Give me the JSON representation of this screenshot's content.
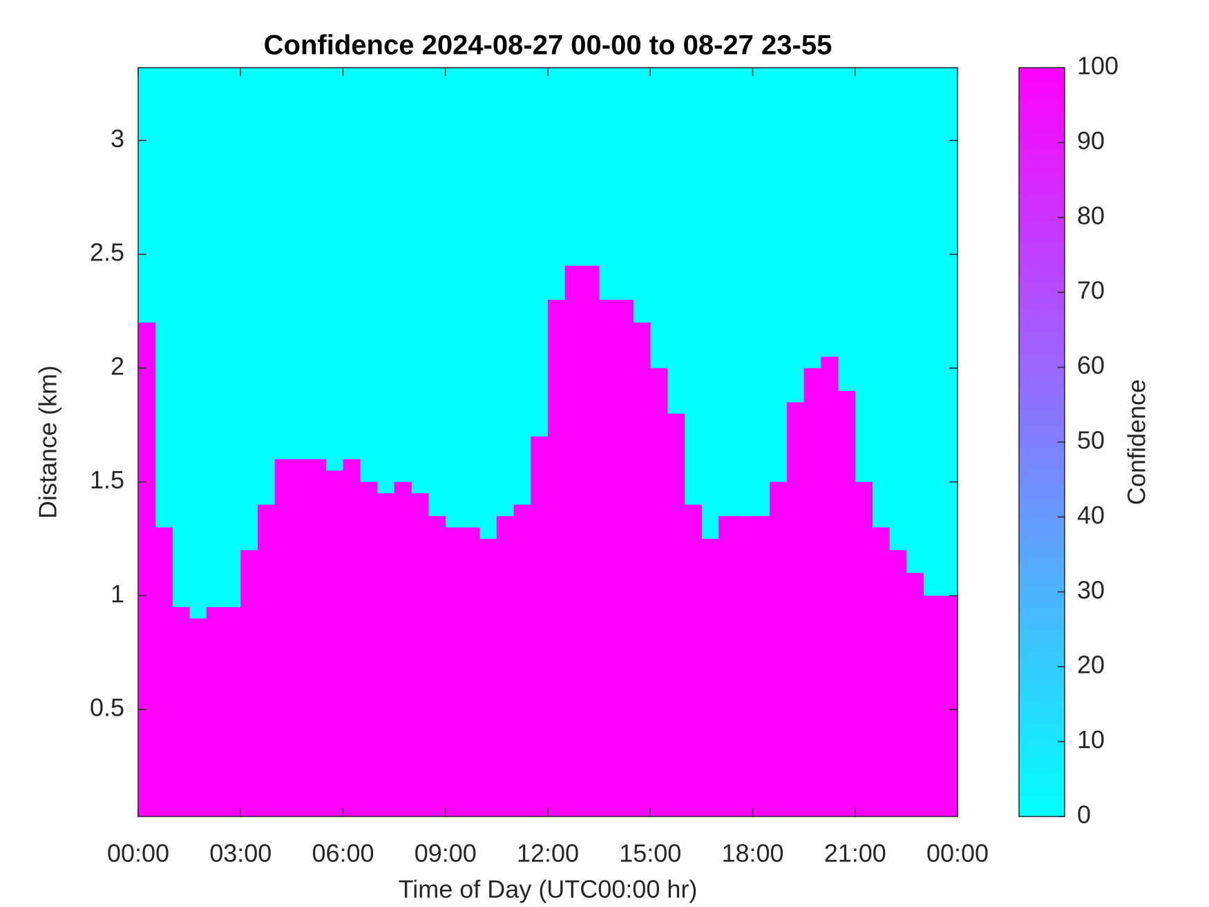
{
  "chart_data": {
    "type": "heatmap",
    "title": "Confidence 2024-08-27 00-00 to 08-27 23-55",
    "xlabel": "Time of Day (UTC00:00 hr)",
    "ylabel": "Distance (km)",
    "colorbar_label": "Confidence",
    "x": [
      0.25,
      0.75,
      1.25,
      1.75,
      2.25,
      2.75,
      3.25,
      3.75,
      4.25,
      4.75,
      5.25,
      5.75,
      6.25,
      6.75,
      7.25,
      7.75,
      8.25,
      8.75,
      9.25,
      9.75,
      10.25,
      10.75,
      11.25,
      11.75,
      12.25,
      12.75,
      13.25,
      13.75,
      14.25,
      14.75,
      15.25,
      15.75,
      16.25,
      16.75,
      17.25,
      17.75,
      18.25,
      18.75,
      19.25,
      19.75,
      20.25,
      20.75,
      21.25,
      21.75,
      22.25,
      22.75,
      23.25,
      23.75
    ],
    "values": [
      2.2,
      1.3,
      0.95,
      0.9,
      0.95,
      0.95,
      1.2,
      1.4,
      1.6,
      1.6,
      1.6,
      1.55,
      1.6,
      1.5,
      1.45,
      1.5,
      1.45,
      1.35,
      1.3,
      1.3,
      1.25,
      1.35,
      1.4,
      1.7,
      2.3,
      2.45,
      2.45,
      2.3,
      2.3,
      2.2,
      2.0,
      1.8,
      1.4,
      1.25,
      1.35,
      1.35,
      1.35,
      1.5,
      1.85,
      2.0,
      2.05,
      1.9,
      1.5,
      1.3,
      1.2,
      1.1,
      1.0,
      1.0
    ],
    "value_inside": 100,
    "value_outside": 0,
    "xlim": [
      0,
      24
    ],
    "xticks": [
      {
        "value": 0,
        "label": "00:00"
      },
      {
        "value": 3,
        "label": "03:00"
      },
      {
        "value": 6,
        "label": "06:00"
      },
      {
        "value": 9,
        "label": "09:00"
      },
      {
        "value": 12,
        "label": "12:00"
      },
      {
        "value": 15,
        "label": "15:00"
      },
      {
        "value": 18,
        "label": "18:00"
      },
      {
        "value": 21,
        "label": "21:00"
      },
      {
        "value": 24,
        "label": "00:00"
      }
    ],
    "ylim": [
      0.03,
      3.32
    ],
    "yticks": [
      0.5,
      1,
      1.5,
      2,
      2.5,
      3
    ],
    "clim": [
      0,
      100
    ],
    "cticks": [
      0,
      10,
      20,
      30,
      40,
      50,
      60,
      70,
      80,
      90,
      100
    ],
    "colormap": [
      "#00ffff",
      "#ff00ff"
    ]
  }
}
